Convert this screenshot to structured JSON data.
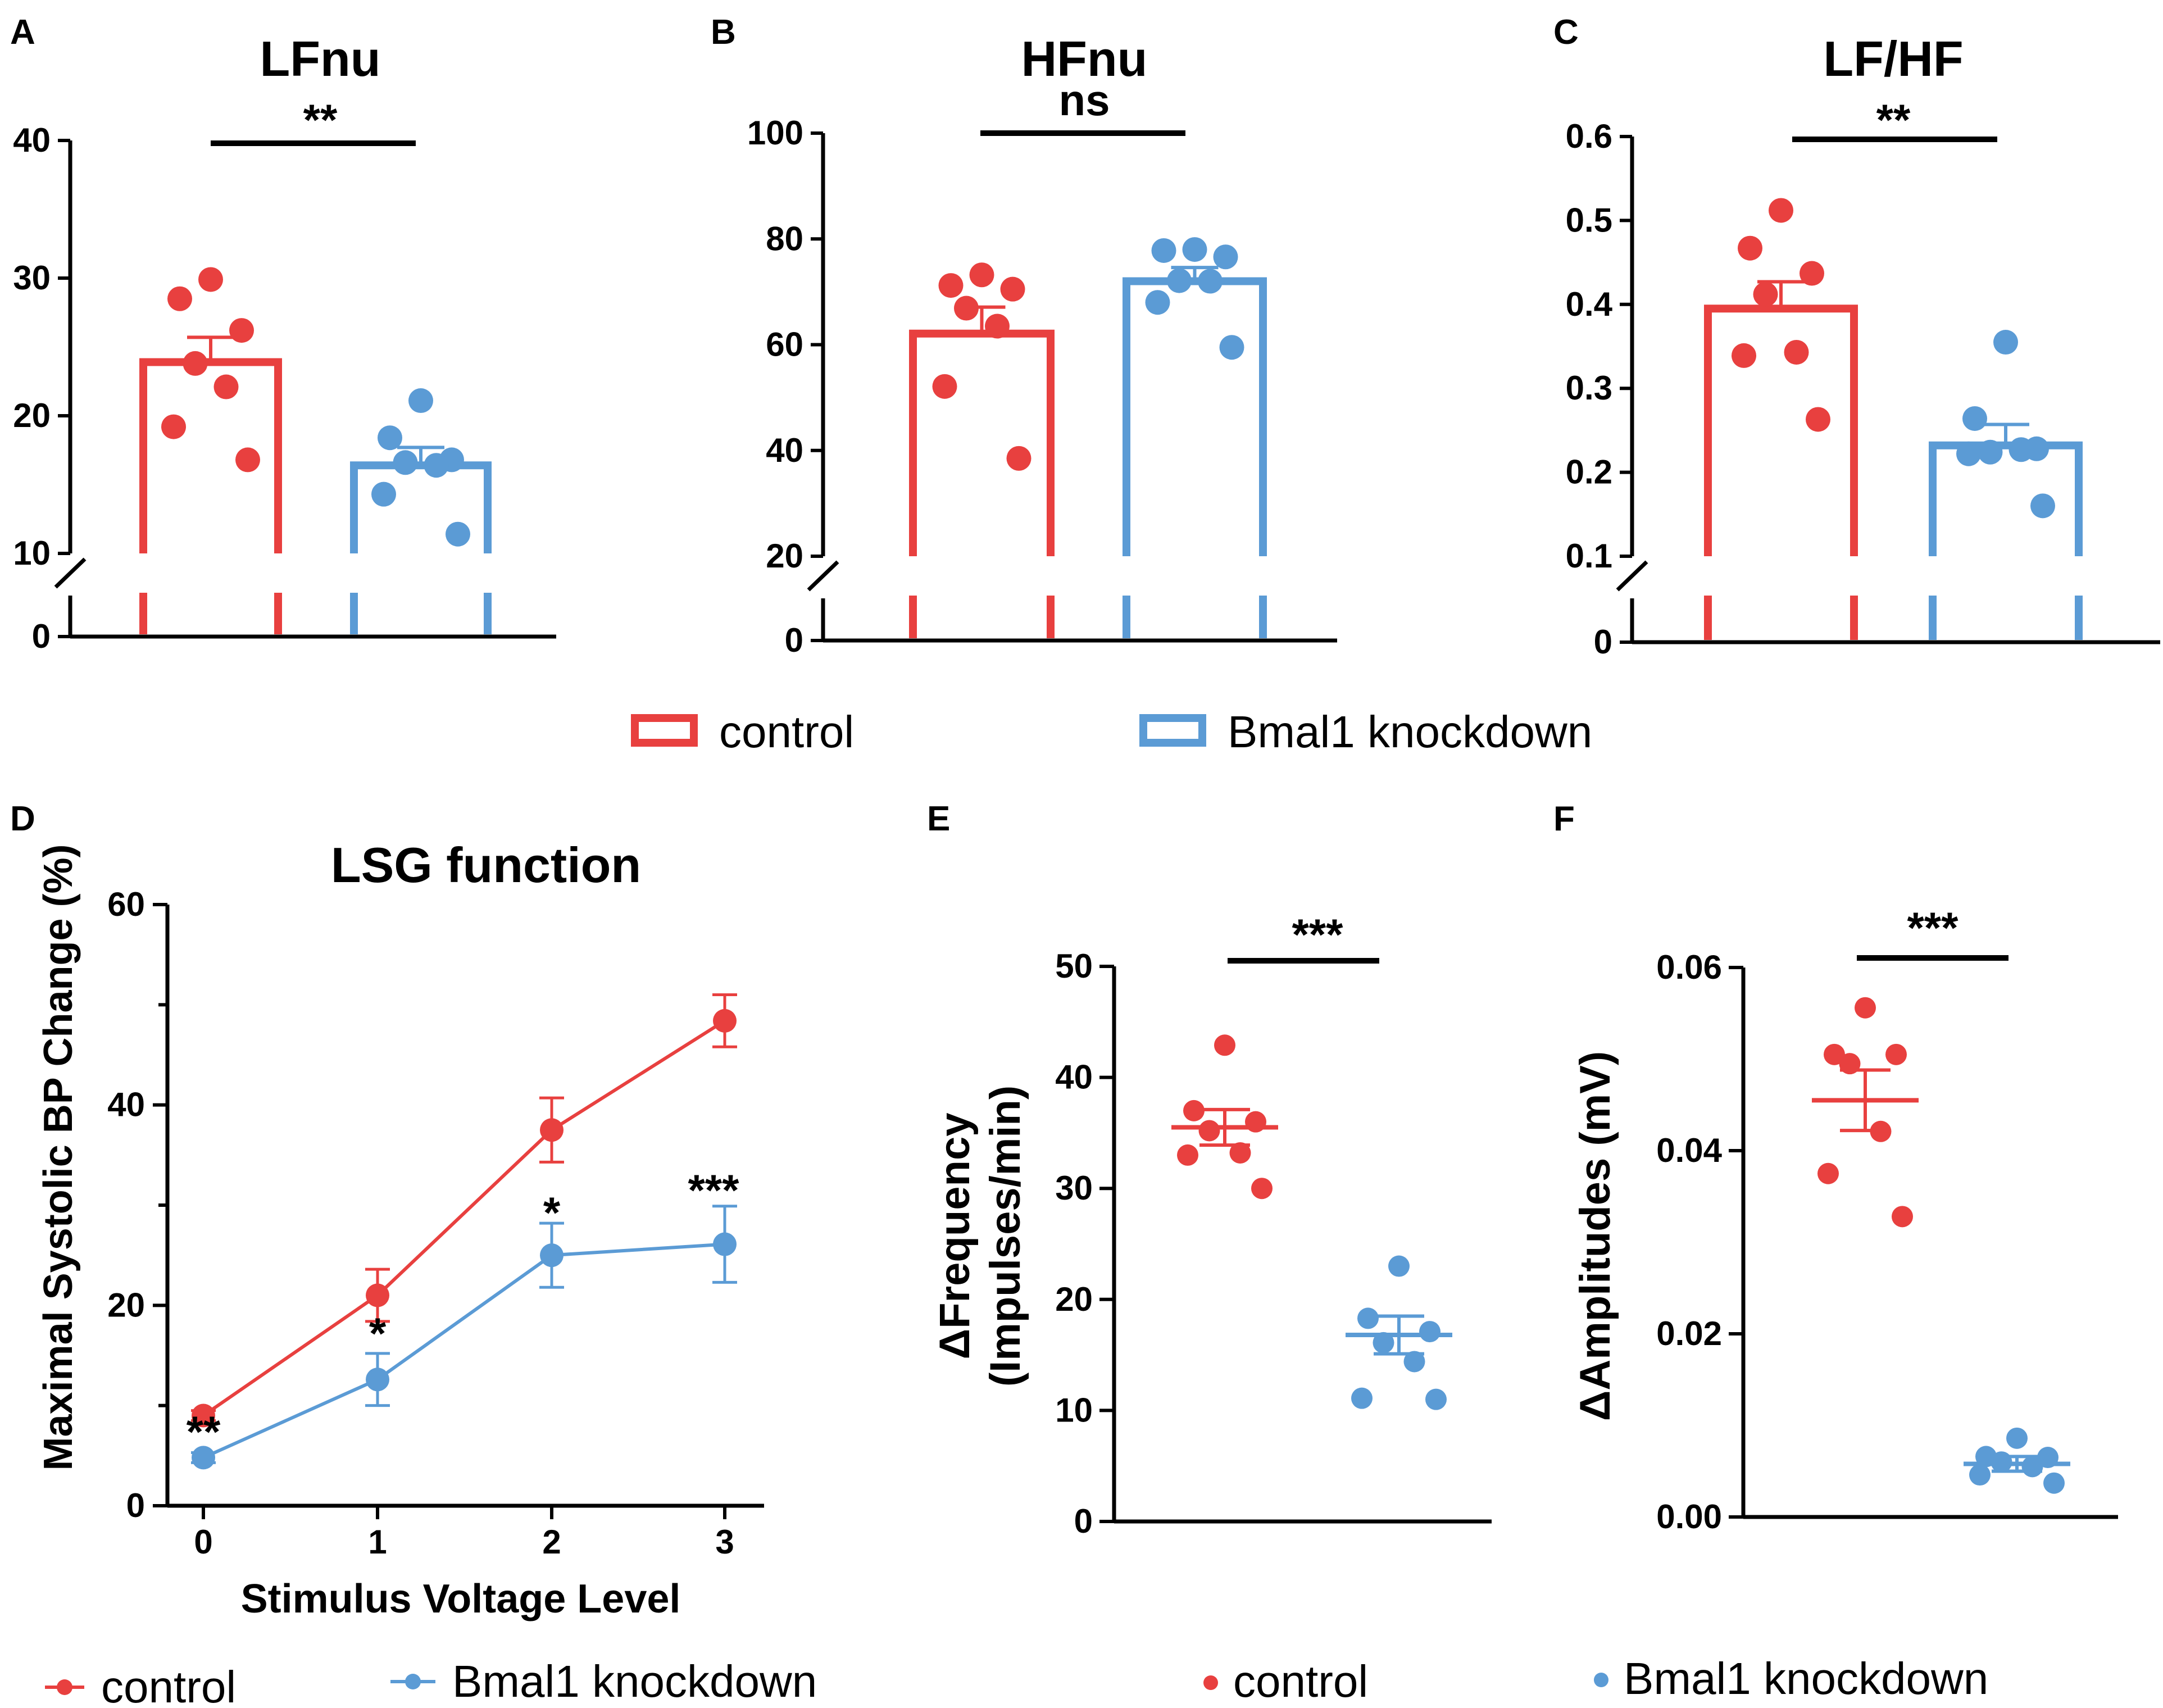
{
  "colors": {
    "control": "#E8403F",
    "knockdown": "#5B9BD5",
    "axis": "#000000"
  },
  "legend_top": {
    "control": "control",
    "knockdown": "Bmal1 knockdown"
  },
  "legend_D": {
    "control": "control",
    "knockdown": "Bmal1 knockdown"
  },
  "legend_EF": {
    "control": "control",
    "knockdown": "Bmal1 knockdown"
  },
  "chart_data": [
    {
      "panel": "A",
      "type": "bar",
      "title": "LFnu",
      "xlabel": "",
      "ylabel": "",
      "ylim": [
        0,
        40
      ],
      "axis_break": [
        0,
        10
      ],
      "yticks": [
        0,
        10,
        20,
        30,
        40
      ],
      "ytick_labels": [
        "0",
        "10",
        "20",
        "30",
        "40"
      ],
      "series": [
        {
          "name": "control",
          "mean": 23.9,
          "sem": 1.8,
          "points": [
            29.9,
            28.5,
            26.2,
            23.8,
            22.1,
            19.2,
            16.8
          ]
        },
        {
          "name": "Bmal1 knockdown",
          "mean": 16.4,
          "sem": 1.3,
          "points": [
            21.1,
            18.4,
            16.8,
            16.6,
            16.4,
            14.3,
            11.4
          ]
        }
      ],
      "significance": "**"
    },
    {
      "panel": "B",
      "type": "bar",
      "title": "HFnu",
      "xlabel": "",
      "ylabel": "",
      "ylim": [
        0,
        100
      ],
      "axis_break": [
        0,
        20
      ],
      "yticks": [
        0,
        20,
        40,
        60,
        80,
        100
      ],
      "ytick_labels": [
        "0",
        "20",
        "40",
        "60",
        "80",
        "100"
      ],
      "series": [
        {
          "name": "control",
          "mean": 62.1,
          "sem": 5.0,
          "points": [
            73.2,
            71.2,
            70.5,
            66.9,
            63.5,
            52.1,
            38.5
          ]
        },
        {
          "name": "Bmal1 knockdown",
          "mean": 72.0,
          "sem": 2.6,
          "points": [
            78.0,
            77.8,
            76.6,
            72.1,
            72.0,
            68.0,
            59.5
          ]
        }
      ],
      "significance": "ns"
    },
    {
      "panel": "C",
      "type": "bar",
      "title": "LF/HF",
      "xlabel": "",
      "ylabel": "",
      "ylim": [
        0,
        0.6
      ],
      "axis_break": [
        0,
        0.1
      ],
      "yticks": [
        0,
        0.1,
        0.2,
        0.3,
        0.4,
        0.5,
        0.6
      ],
      "ytick_labels": [
        "0",
        "0.1",
        "0.2",
        "0.3",
        "0.4",
        "0.5",
        "0.6"
      ],
      "series": [
        {
          "name": "control",
          "mean": 0.395,
          "sem": 0.032,
          "points": [
            0.512,
            0.467,
            0.437,
            0.412,
            0.343,
            0.339,
            0.263
          ]
        },
        {
          "name": "Bmal1 knockdown",
          "mean": 0.232,
          "sem": 0.025,
          "points": [
            0.355,
            0.264,
            0.228,
            0.224,
            0.227,
            0.222,
            0.16
          ]
        }
      ],
      "significance": "**"
    },
    {
      "panel": "D",
      "type": "line",
      "title": "LSG function",
      "xlabel": "Stimulus Voltage Level",
      "ylabel": "Maximal Systolic BP Change (%)",
      "ylim": [
        0,
        60
      ],
      "yticks": [
        0,
        20,
        40,
        60
      ],
      "ytick_labels": [
        "0",
        "20",
        "40",
        "60"
      ],
      "x": [
        0,
        1,
        2,
        3
      ],
      "xtick_labels": [
        "0",
        "1",
        "2",
        "3"
      ],
      "series": [
        {
          "name": "control",
          "values": [
            9.0,
            21.0,
            37.5,
            48.4
          ],
          "sem": [
            0.5,
            2.6,
            3.2,
            2.6
          ]
        },
        {
          "name": "Bmal1 knockdown",
          "values": [
            4.8,
            12.6,
            25.0,
            26.1
          ],
          "sem": [
            0.5,
            2.6,
            3.2,
            3.8
          ]
        }
      ],
      "significance": [
        "**",
        "*",
        "*",
        "***"
      ]
    },
    {
      "panel": "E",
      "type": "scatter",
      "title": "",
      "xlabel": "",
      "ylabel_line1": "ΔFrequency",
      "ylabel_line2": "(Impulses/min)",
      "ylim": [
        0,
        50
      ],
      "yticks": [
        0,
        10,
        20,
        30,
        40,
        50
      ],
      "ytick_labels": [
        "0",
        "10",
        "20",
        "30",
        "40",
        "50"
      ],
      "series": [
        {
          "name": "control",
          "mean": 35.5,
          "sem": 1.6,
          "points": [
            42.9,
            37.0,
            36.0,
            35.2,
            33.2,
            33.0,
            30.0
          ]
        },
        {
          "name": "Bmal1 knockdown",
          "mean": 16.8,
          "sem": 1.7,
          "points": [
            23.0,
            18.3,
            17.1,
            16.1,
            14.4,
            11.1,
            11.0
          ]
        }
      ],
      "significance": "***"
    },
    {
      "panel": "F",
      "type": "scatter",
      "title": "",
      "xlabel": "",
      "ylabel": "ΔAmplitudes (mV)",
      "ylim": [
        0,
        0.06
      ],
      "yticks": [
        0,
        0.02,
        0.04,
        0.06
      ],
      "ytick_labels": [
        "0.00",
        "0.02",
        "0.04",
        "0.06"
      ],
      "series": [
        {
          "name": "control",
          "mean": 0.0455,
          "sem": 0.0033,
          "points": [
            0.0556,
            0.0505,
            0.0505,
            0.0495,
            0.0421,
            0.0375,
            0.0328
          ]
        },
        {
          "name": "Bmal1 knockdown",
          "mean": 0.0058,
          "sem": 0.0008,
          "points": [
            0.0086,
            0.0066,
            0.0065,
            0.006,
            0.0055,
            0.0046,
            0.0037
          ]
        }
      ],
      "significance": "***"
    }
  ]
}
